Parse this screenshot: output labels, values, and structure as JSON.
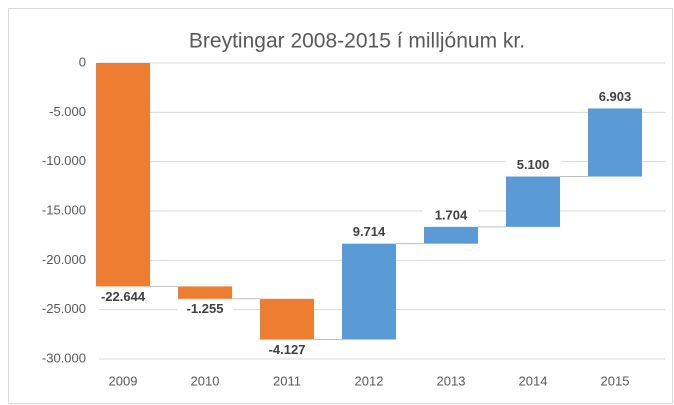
{
  "chart_data": {
    "type": "waterfall",
    "title": "Breytingar 2008-2015 í milljónum kr.",
    "categories": [
      "2009",
      "2010",
      "2011",
      "2012",
      "2013",
      "2014",
      "2015"
    ],
    "values": [
      -22644,
      -1255,
      -4127,
      9714,
      1704,
      5100,
      6903
    ],
    "value_labels": [
      "-22.644",
      "-1.255",
      "-4.127",
      "9.714",
      "1.704",
      "5.100",
      "6.903"
    ],
    "increase_color": "#5b9bd5",
    "decrease_color": "#ed7d31",
    "ylim": [
      -30000,
      0
    ],
    "yticks": [
      0,
      {
        "value": -5000,
        "label": "-5.000"
      },
      {
        "value": -10000,
        "label": "-10.000"
      },
      {
        "value": -15000,
        "label": "-15.000"
      },
      {
        "value": -20000,
        "label": "-20.000"
      },
      {
        "value": -25000,
        "label": "-25.000"
      },
      {
        "value": -30000,
        "label": "-30.000"
      }
    ],
    "grid": true
  }
}
